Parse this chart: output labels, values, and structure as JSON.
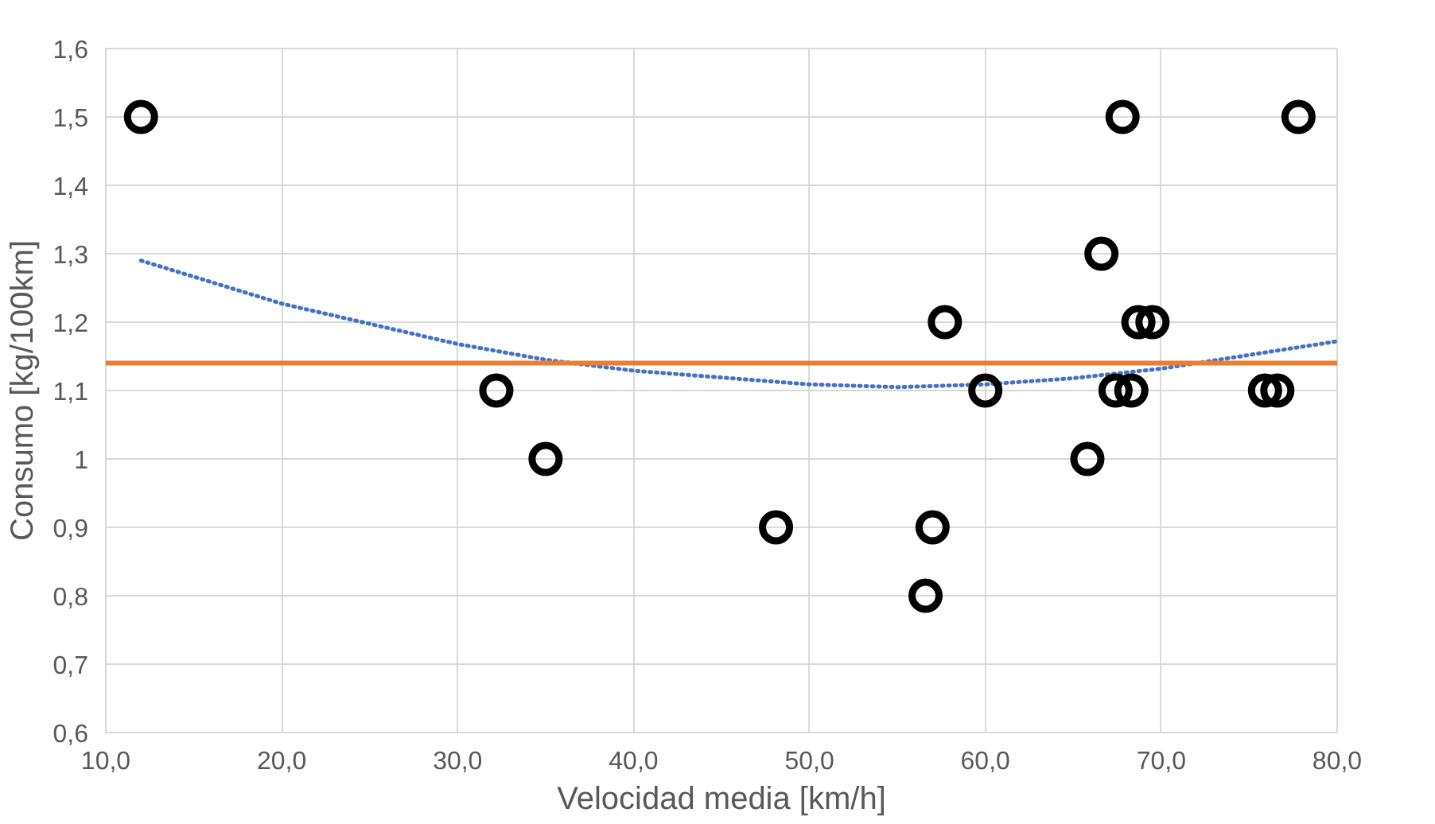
{
  "chart_data": {
    "type": "scatter",
    "xlabel": "Velocidad media [km/h]",
    "ylabel": "Consumo [kg/100km]",
    "xlim": [
      10,
      80
    ],
    "ylim": [
      0.6,
      1.6
    ],
    "xticks": [
      {
        "value": 10,
        "label": "10,0"
      },
      {
        "value": 20,
        "label": "20,0"
      },
      {
        "value": 30,
        "label": "30,0"
      },
      {
        "value": 40,
        "label": "40,0"
      },
      {
        "value": 50,
        "label": "50,0"
      },
      {
        "value": 60,
        "label": "60,0"
      },
      {
        "value": 70,
        "label": "70,0"
      },
      {
        "value": 80,
        "label": "80,0"
      }
    ],
    "yticks": [
      {
        "value": 0.6,
        "label": "0,6"
      },
      {
        "value": 0.7,
        "label": "0,7"
      },
      {
        "value": 0.8,
        "label": "0,8"
      },
      {
        "value": 0.9,
        "label": "0,9"
      },
      1,
      {
        "value": 1.1,
        "label": "1,1"
      },
      {
        "value": 1.2,
        "label": "1,2"
      },
      {
        "value": 1.3,
        "label": "1,3"
      },
      {
        "value": 1.4,
        "label": "1,4"
      },
      {
        "value": 1.5,
        "label": "1,5"
      },
      {
        "value": 1.6,
        "label": "1,6"
      }
    ],
    "grid": true,
    "series": [
      {
        "color": "#000000",
        "marker": "circle",
        "x": [
          12.0,
          32.2,
          35.0,
          48.1,
          56.6,
          57.0,
          57.7,
          60.0,
          65.8,
          66.6,
          67.8,
          67.4,
          68.3,
          68.7,
          69.5,
          75.9,
          76.6,
          77.8
        ],
        "values": [
          1.5,
          1.1,
          1.0,
          0.9,
          0.8,
          0.9,
          1.2,
          1.1,
          1.0,
          1.3,
          1.5,
          1.1,
          1.1,
          1.2,
          1.2,
          1.1,
          1.1,
          1.5
        ]
      },
      {
        "type": "line",
        "color": "#4472c4",
        "line_style": "dotted",
        "marker": "none",
        "x": [
          12,
          20,
          30,
          35,
          40,
          50,
          55,
          60,
          65,
          70,
          75,
          80
        ],
        "values": [
          1.29,
          1.227,
          1.168,
          1.145,
          1.129,
          1.109,
          1.105,
          1.109,
          1.118,
          1.132,
          1.152,
          1.172
        ]
      }
    ],
    "ref_lines": [
      {
        "axis": "y",
        "value": 1.14,
        "color": "#ed7d31",
        "line_style": "solid"
      }
    ]
  }
}
